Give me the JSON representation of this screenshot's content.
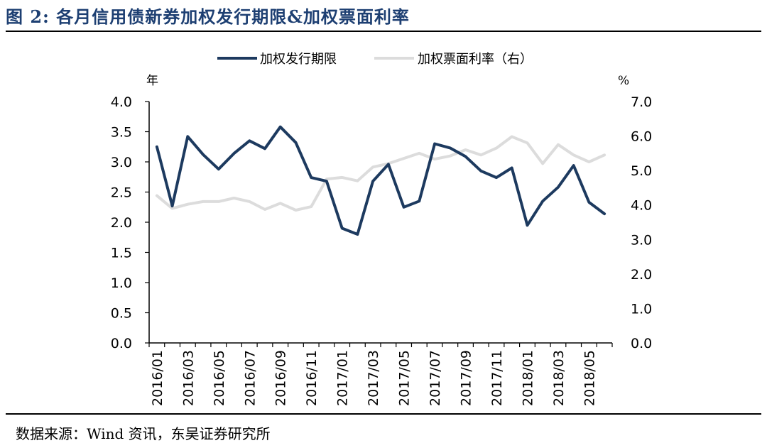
{
  "figure": {
    "title": "图 2:  各月信用债新券加权发行期限&加权票面利率",
    "source": "数据来源：Wind 资讯，东吴证券研究所"
  },
  "colors": {
    "series_term": "#1d3a5f",
    "series_rate": "#dcdcdc",
    "axis": "#000000",
    "title": "#1d3f72"
  },
  "chart_data": {
    "type": "line",
    "x": [
      "2016/01",
      "2016/02",
      "2016/03",
      "2016/04",
      "2016/05",
      "2016/06",
      "2016/07",
      "2016/08",
      "2016/09",
      "2016/10",
      "2016/11",
      "2016/12",
      "2017/01",
      "2017/02",
      "2017/03",
      "2017/04",
      "2017/05",
      "2017/06",
      "2017/07",
      "2017/08",
      "2017/09",
      "2017/10",
      "2017/11",
      "2017/12",
      "2018/01",
      "2018/02",
      "2018/03",
      "2018/04",
      "2018/05",
      "2018/06"
    ],
    "x_tick_labels": [
      "2016/01",
      "2016/03",
      "2016/05",
      "2016/07",
      "2016/09",
      "2016/11",
      "2017/01",
      "2017/03",
      "2017/05",
      "2017/07",
      "2017/09",
      "2017/11",
      "2018/01",
      "2018/03",
      "2018/05"
    ],
    "y_left": {
      "unit": "年",
      "ticks": [
        "0.0",
        "0.5",
        "1.0",
        "1.5",
        "2.0",
        "2.5",
        "3.0",
        "3.5",
        "4.0"
      ],
      "range": [
        0,
        4
      ]
    },
    "y_right": {
      "unit": "%",
      "ticks": [
        "0.0",
        "1.0",
        "2.0",
        "3.0",
        "4.0",
        "5.0",
        "6.0",
        "7.0"
      ],
      "range": [
        0,
        7
      ]
    },
    "legend_position": "top-center",
    "series": [
      {
        "name": "加权发行期限",
        "axis": "left",
        "values": [
          3.25,
          2.27,
          3.42,
          3.12,
          2.88,
          3.14,
          3.35,
          3.22,
          3.58,
          3.32,
          2.74,
          2.68,
          1.9,
          1.8,
          2.68,
          2.96,
          2.25,
          2.35,
          3.3,
          3.23,
          3.09,
          2.85,
          2.74,
          2.9,
          1.95,
          2.35,
          2.58,
          2.94,
          2.33,
          2.14
        ]
      },
      {
        "name": "加权票面利率（右）",
        "axis": "right",
        "values": [
          4.27,
          3.9,
          4.02,
          4.1,
          4.1,
          4.2,
          4.1,
          3.87,
          4.05,
          3.85,
          3.95,
          4.75,
          4.8,
          4.7,
          5.1,
          5.2,
          5.35,
          5.5,
          5.33,
          5.42,
          5.6,
          5.45,
          5.65,
          5.98,
          5.8,
          5.2,
          5.75,
          5.45,
          5.25,
          5.45
        ]
      }
    ]
  }
}
